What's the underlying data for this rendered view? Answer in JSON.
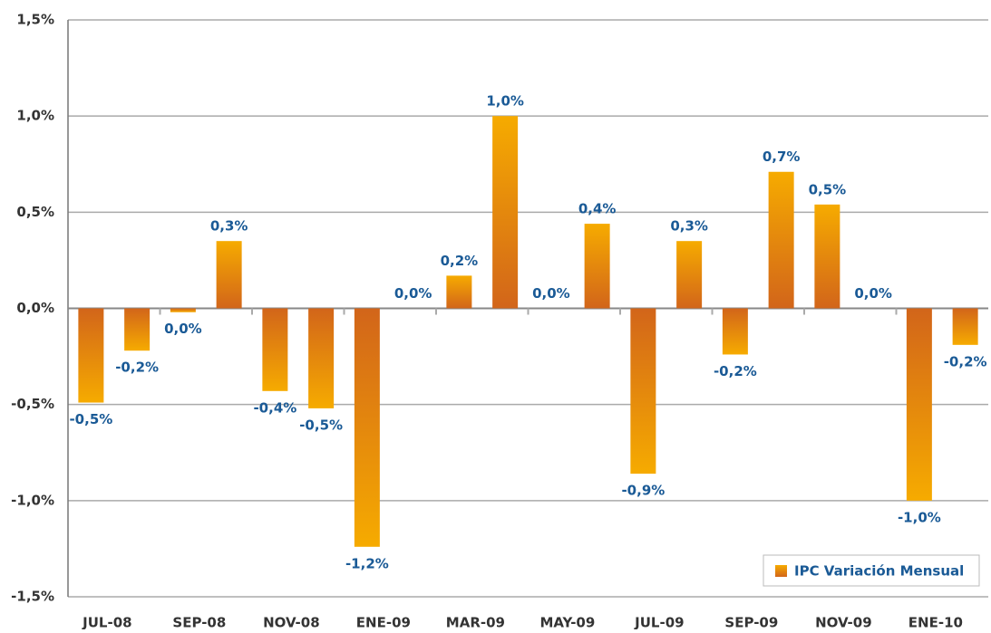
{
  "chart_data": {
    "type": "bar",
    "categories": [
      "JUL-08",
      null,
      "SEP-08",
      null,
      "NOV-08",
      null,
      "ENE-09",
      null,
      "MAR-09",
      null,
      "MAY-09",
      null,
      "JUL-09",
      null,
      "SEP-09",
      null,
      "NOV-09",
      null,
      "ENE-10",
      null
    ],
    "series": [
      {
        "name": "IPC Variación Mensual",
        "color": "#e8890c",
        "values": [
          -0.49,
          -0.22,
          -0.02,
          0.35,
          -0.43,
          -0.52,
          -1.24,
          0.0,
          0.17,
          1.0,
          0.0,
          0.44,
          -0.86,
          0.35,
          -0.24,
          0.71,
          0.54,
          0.0,
          -1.0,
          -0.19
        ],
        "value_labels": [
          "-0,5%",
          "-0,2%",
          "0,0%",
          "0,3%",
          "-0,4%",
          "-0,5%",
          "-1,2%",
          "0,0%",
          "0,2%",
          "1,0%",
          "0,0%",
          "0,4%",
          "-0,9%",
          "0,3%",
          "-0,2%",
          "0,7%",
          "0,5%",
          "0,0%",
          "-1,0%",
          "-0,2%"
        ]
      }
    ],
    "ylim": [
      -1.5,
      1.5
    ],
    "yticks": [
      {
        "value": -1.5,
        "label": "-1,5%"
      },
      {
        "value": -1.0,
        "label": "-1,0%"
      },
      {
        "value": -0.5,
        "label": "-0,5%"
      },
      {
        "value": 0.0,
        "label": "0,0%"
      },
      {
        "value": 0.5,
        "label": "0,5%"
      },
      {
        "value": 1.0,
        "label": "1,0%"
      },
      {
        "value": 1.5,
        "label": "1,5%"
      }
    ],
    "grid": true,
    "legend": "bottom-right"
  }
}
